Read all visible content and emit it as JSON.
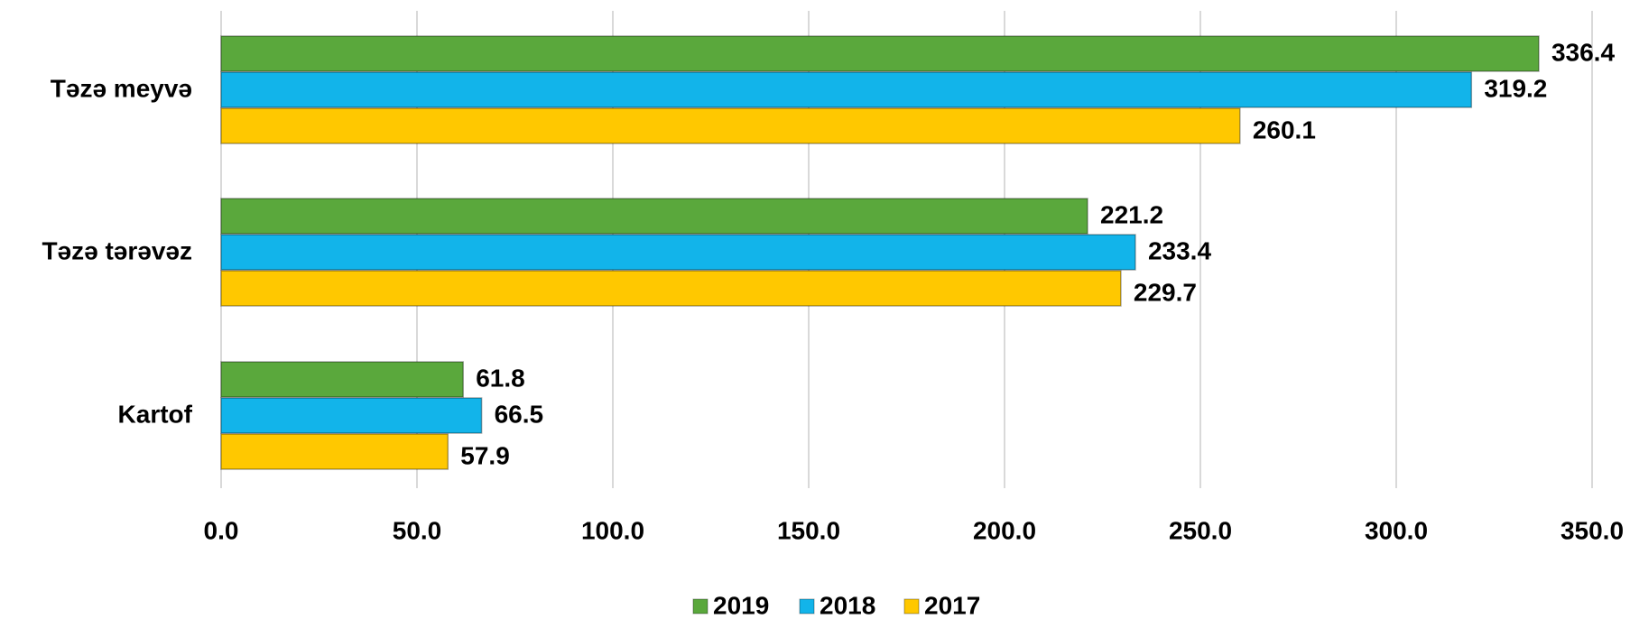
{
  "chart_data": {
    "type": "barh",
    "categories": [
      "Təzə meyvə",
      "Təzə tərəvəz",
      "Kartof"
    ],
    "series": [
      {
        "name": "2019",
        "color": "#5aa83c",
        "values": [
          336.4,
          221.2,
          61.8
        ]
      },
      {
        "name": "2018",
        "color": "#12b4ea",
        "values": [
          319.2,
          233.4,
          66.5
        ]
      },
      {
        "name": "2017",
        "color": "#ffc800",
        "values": [
          260.1,
          229.7,
          57.9
        ]
      }
    ],
    "xlim": [
      0,
      350
    ],
    "xticks": [
      {
        "value": 0,
        "label": "0.0"
      },
      {
        "value": 50,
        "label": "50.0"
      },
      {
        "value": 100,
        "label": "100.0"
      },
      {
        "value": 150,
        "label": "150.0"
      },
      {
        "value": 200,
        "label": "200.0"
      },
      {
        "value": 250,
        "label": "250.0"
      },
      {
        "value": 300,
        "label": "300.0"
      },
      {
        "value": 350,
        "label": "350.0"
      }
    ],
    "grid": true,
    "legend": "bottom"
  }
}
